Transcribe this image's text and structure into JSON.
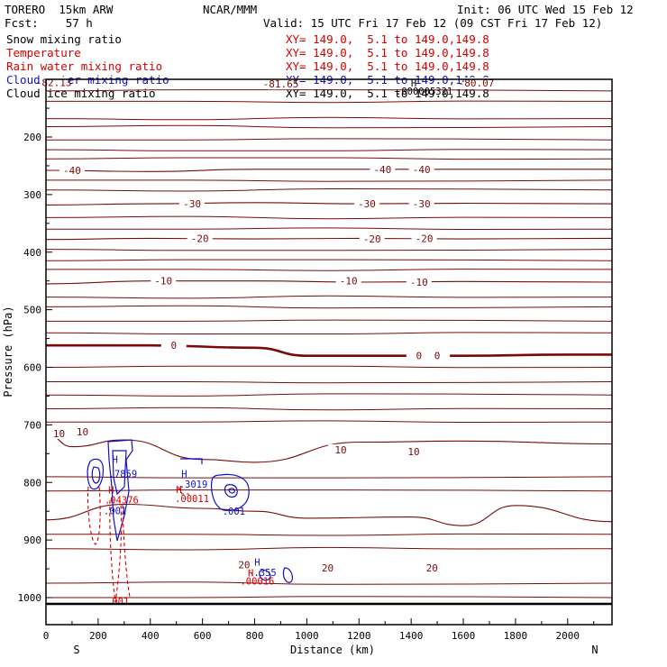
{
  "header": {
    "model": "TORERO  15km ARW",
    "center": "NCAR/MMM",
    "init": "Init: 06 UTC Wed 15 Feb 12",
    "fcst": "Fcst:    57 h",
    "valid": "Valid: 15 UTC Fri 17 Feb 12 (09 CST Fri 17 Feb 12)"
  },
  "legend": [
    {
      "name": "Snow mixing ratio",
      "xy": "XY= 149.0,  5.1 to 149.0,149.8",
      "color": "#000000"
    },
    {
      "name": "Temperature",
      "xy": "XY= 149.0,  5.1 to 149.0,149.8",
      "color": "#d40000"
    },
    {
      "name": "Rain water mixing ratio",
      "xy": "XY= 149.0,  5.1 to 149.0,149.8",
      "color": "#d40000"
    },
    {
      "name": "Cloud water mixing ratio",
      "xy": "XY= 149.0,  5.1 to 149.0,149.8",
      "color": "#1010c8"
    },
    {
      "name": "Cloud ice mixing ratio",
      "xy": "XY= 149.0,  5.1 to 149.0,149.8",
      "color": "#000000"
    }
  ],
  "chart_data": {
    "type": "line",
    "xlabel": "Distance (km)",
    "ylabel": "Pressure (hPa)",
    "xlim": [
      0,
      2170
    ],
    "ylim": [
      1045,
      100
    ],
    "x_ticks": [
      "0",
      "200",
      "400",
      "600",
      "800",
      "1000",
      "1200",
      "1400",
      "1600",
      "1800",
      "2000"
    ],
    "y_ticks": [
      "200",
      "300",
      "400",
      "500",
      "600",
      "700",
      "800",
      "900",
      "1000"
    ],
    "direction_left": "S",
    "direction_right": "N",
    "temperature_isotherms": [
      {
        "label": "-40",
        "x": [
          0,
          400,
          800,
          1200,
          1600,
          2170
        ],
        "p": [
          258,
          260,
          256,
          256,
          256,
          256
        ]
      },
      {
        "label": "-30",
        "x": [
          0,
          400,
          800,
          1200,
          1600,
          2170
        ],
        "p": [
          318,
          316,
          314,
          316,
          315,
          316
        ]
      },
      {
        "label": "-20",
        "x": [
          0,
          400,
          800,
          1200,
          1600,
          2170
        ],
        "p": [
          378,
          376,
          377,
          376,
          377,
          376
        ]
      },
      {
        "label": "-10",
        "x": [
          0,
          400,
          800,
          1200,
          1600,
          2170
        ],
        "p": [
          455,
          450,
          450,
          452,
          451,
          452
        ]
      },
      {
        "label": "0",
        "x": [
          0,
          400,
          800,
          1000,
          1200,
          1600,
          2000,
          2170
        ],
        "p": [
          562,
          562,
          566,
          580,
          580,
          580,
          578,
          578
        ]
      },
      {
        "label": "10",
        "x": [
          0,
          100,
          300,
          600,
          800,
          1200,
          1600,
          2170
        ],
        "p": [
          715,
          738,
          726,
          760,
          765,
          730,
          728,
          733
        ]
      },
      {
        "label": "20",
        "x": [
          0,
          300,
          600,
          800,
          1000,
          1400,
          1600,
          1800,
          2170
        ],
        "p": [
          865,
          838,
          845,
          850,
          862,
          860,
          875,
          840,
          868
        ]
      }
    ],
    "temperature_labels": [
      {
        "text": "-82.13",
        "x": 30,
        "p": 105
      },
      {
        "text": "-81.65",
        "x": 900,
        "p": 108
      },
      {
        "text": "-80.07",
        "x": 1650,
        "p": 106
      },
      {
        "text": "-40",
        "x": 100,
        "p": 258
      },
      {
        "text": "-40",
        "x": 1290,
        "p": 256
      },
      {
        "text": "-40",
        "x": 1440,
        "p": 256
      },
      {
        "text": "-30",
        "x": 560,
        "p": 316
      },
      {
        "text": "-30",
        "x": 1230,
        "p": 316
      },
      {
        "text": "-30",
        "x": 1440,
        "p": 316
      },
      {
        "text": "-20",
        "x": 590,
        "p": 376
      },
      {
        "text": "-20",
        "x": 1250,
        "p": 377
      },
      {
        "text": "-20",
        "x": 1450,
        "p": 376
      },
      {
        "text": "-10",
        "x": 450,
        "p": 450
      },
      {
        "text": "-10",
        "x": 1160,
        "p": 450
      },
      {
        "text": "-10",
        "x": 1430,
        "p": 452
      },
      {
        "text": "0",
        "x": 490,
        "p": 562
      },
      {
        "text": "0",
        "x": 1430,
        "p": 580
      },
      {
        "text": "0",
        "x": 1500,
        "p": 580
      },
      {
        "text": "10",
        "x": 50,
        "p": 715
      },
      {
        "text": "10",
        "x": 140,
        "p": 712
      },
      {
        "text": "10",
        "x": 1130,
        "p": 743
      },
      {
        "text": "10",
        "x": 1410,
        "p": 746
      },
      {
        "text": "20",
        "x": 760,
        "p": 943
      },
      {
        "text": "20",
        "x": 1080,
        "p": 948
      },
      {
        "text": "20",
        "x": 1480,
        "p": 948
      }
    ],
    "hl_labels": [
      {
        "text": "H",
        "x": 1410,
        "p": 106,
        "color": "#000000"
      },
      {
        "text": ".000005321",
        "x": 1450,
        "p": 120,
        "color": "#000000"
      },
      {
        "text": "H",
        "x": 265,
        "p": 760,
        "color": "#1010c8"
      },
      {
        "text": ".7859",
        "x": 295,
        "p": 785,
        "color": "#1010c8"
      },
      {
        "text": "H",
        "x": 250,
        "p": 813,
        "color": "#d40000"
      },
      {
        "text": ".04376",
        "x": 290,
        "p": 830,
        "color": "#d40000"
      },
      {
        "text": ".001",
        "x": 265,
        "p": 849,
        "color": "#1010c8"
      },
      {
        "text": "H",
        "x": 530,
        "p": 785,
        "color": "#1010c8"
      },
      {
        "text": ".3019",
        "x": 565,
        "p": 803,
        "color": "#1010c8"
      },
      {
        "text": "H",
        "x": 510,
        "p": 812,
        "color": "#d40000"
      },
      {
        "text": ".00011",
        "x": 560,
        "p": 828,
        "color": "#d40000"
      },
      {
        "text": ".001",
        "x": 720,
        "p": 850,
        "color": "#1010c8"
      },
      {
        "text": "H",
        "x": 810,
        "p": 938,
        "color": "#1010c8"
      },
      {
        "text": "H",
        "x": 785,
        "p": 957,
        "color": "#d40000"
      },
      {
        "text": ".355",
        "x": 840,
        "p": 956,
        "color": "#1010c8"
      },
      {
        "text": ".00016",
        "x": 810,
        "p": 971,
        "color": "#d40000"
      },
      {
        "text": ".001",
        "x": 275,
        "p": 1006,
        "color": "#d40000"
      }
    ]
  }
}
